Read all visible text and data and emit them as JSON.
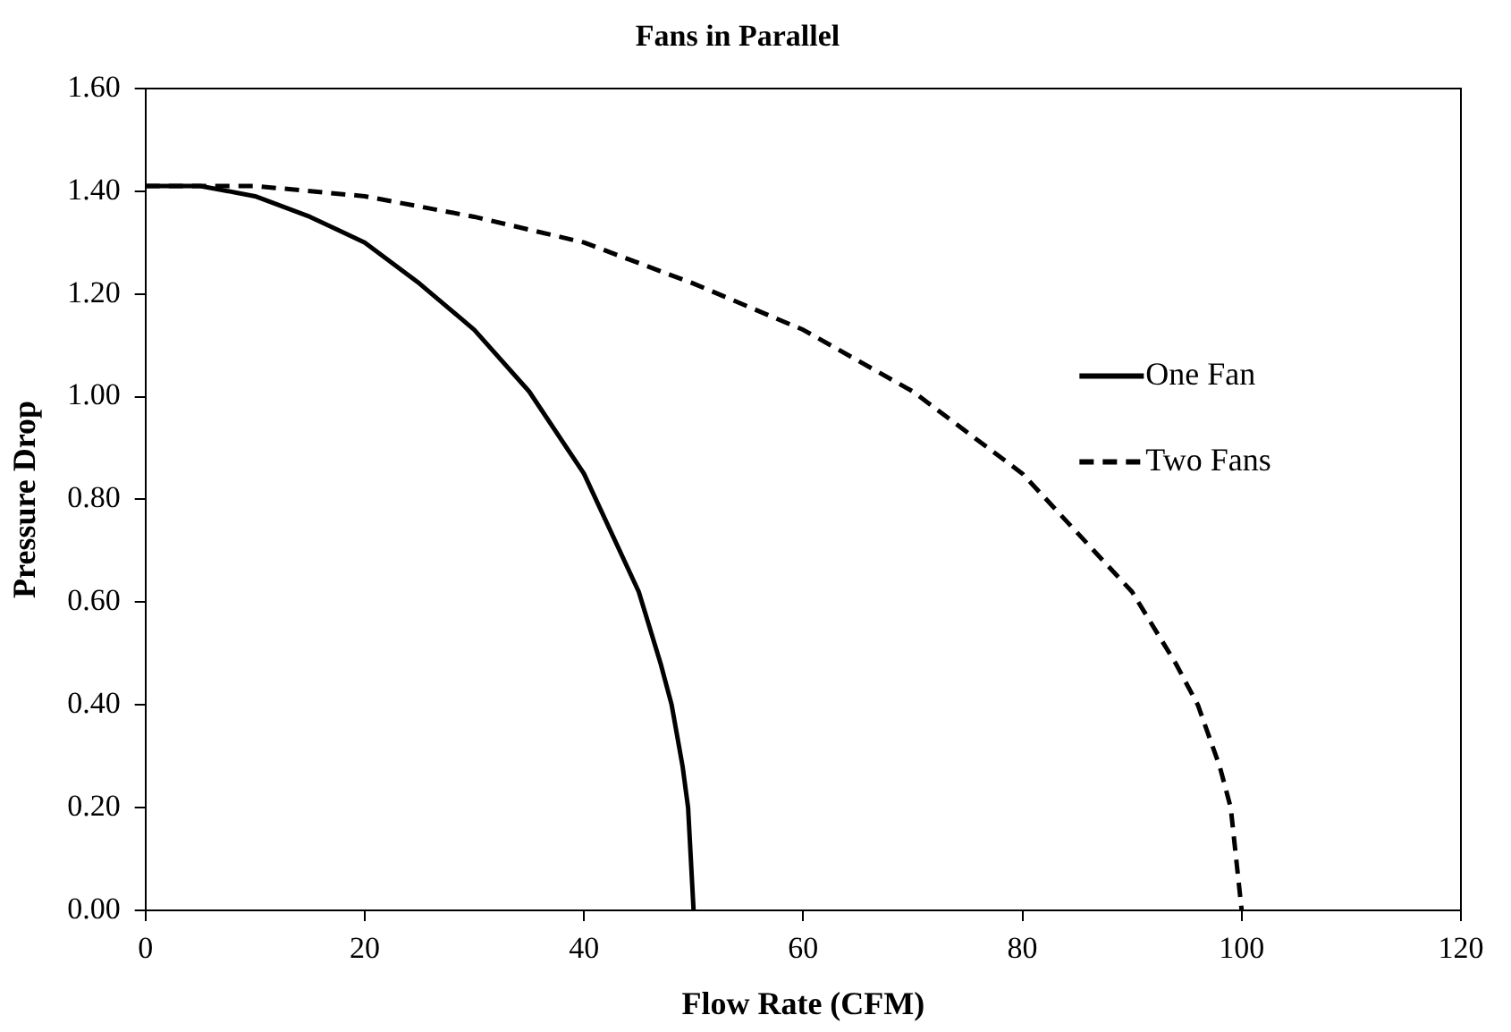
{
  "chart_data": {
    "type": "line",
    "title": "Fans in Parallel",
    "xlabel": "Flow Rate (CFM)",
    "ylabel": "Pressure Drop",
    "xlim": [
      0,
      120
    ],
    "xticks": [
      0,
      20,
      40,
      60,
      80,
      100,
      120
    ],
    "ylim": [
      0,
      1.6
    ],
    "yticks": [
      {
        "value": 0,
        "label": "0.00"
      },
      {
        "value": 0.2,
        "label": "0.20"
      },
      {
        "value": 0.4,
        "label": "0.40"
      },
      {
        "value": 0.6,
        "label": "0.60"
      },
      {
        "value": 0.8,
        "label": "0.80"
      },
      {
        "value": 1,
        "label": "1.00"
      },
      {
        "value": 1.2,
        "label": "1.20"
      },
      {
        "value": 1.4,
        "label": "1.40"
      },
      {
        "value": 1.6,
        "label": "1.60"
      }
    ],
    "grid": false,
    "legend": "right",
    "marker": "none",
    "series": [
      {
        "name": "One Fan",
        "color": "#000000",
        "line_style": "solid",
        "x": [
          0,
          5,
          10,
          15,
          20,
          25,
          30,
          35,
          40,
          45,
          47,
          48,
          49,
          49.5,
          50
        ],
        "values": [
          1.41,
          1.41,
          1.39,
          1.35,
          1.3,
          1.22,
          1.13,
          1.01,
          0.85,
          0.62,
          0.48,
          0.4,
          0.28,
          0.2,
          0
        ]
      },
      {
        "name": "Two Fans",
        "color": "#000000",
        "line_style": "dashed",
        "x": [
          0,
          10,
          20,
          30,
          40,
          50,
          60,
          70,
          80,
          90,
          94,
          96,
          98,
          99,
          100
        ],
        "values": [
          1.41,
          1.41,
          1.39,
          1.35,
          1.3,
          1.22,
          1.13,
          1.01,
          0.85,
          0.62,
          0.48,
          0.4,
          0.28,
          0.2,
          0
        ]
      }
    ]
  }
}
